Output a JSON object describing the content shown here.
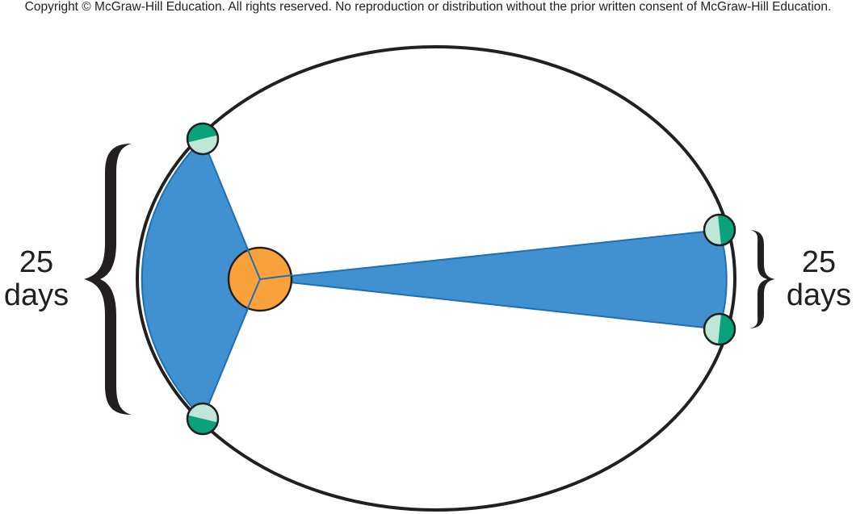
{
  "copyright": "Copyright © McGraw-Hill Education.  All rights reserved. No reproduction or distribution without the prior written consent of McGraw-Hill Education.",
  "left_label": {
    "number": "25",
    "unit": "days"
  },
  "right_label": {
    "number": "25",
    "unit": "days"
  },
  "colors": {
    "orbit": "#231f20",
    "sector_fill": "#4191d0",
    "sector_stroke": "#1f6fb4",
    "sun_fill": "#f9a23c",
    "planet_dark": "#0aa27a",
    "planet_light": "#bfe6d6"
  }
}
